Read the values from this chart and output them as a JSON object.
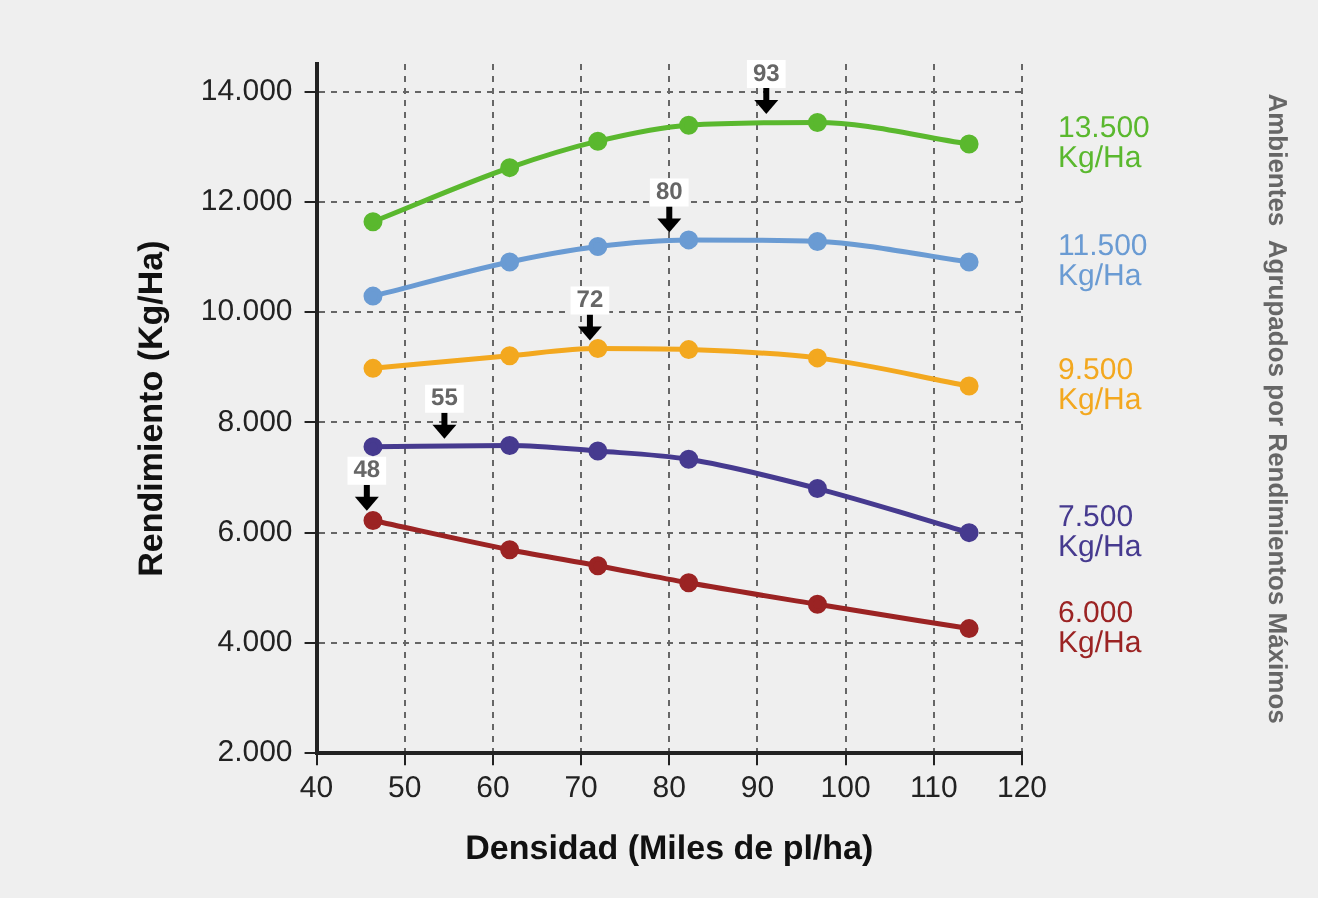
{
  "chart_data": {
    "type": "line",
    "xlabel": "Densidad (Miles de pl/ha)",
    "ylabel": "Rendimiento (Kg/Ha)",
    "legend_title": "Ambientes  Agrupados por Rendimientos Máximos",
    "x": [
      46.4,
      61.9,
      71.9,
      82.2,
      96.8,
      114.0
    ],
    "xlim": [
      40,
      120
    ],
    "xticks": [
      40,
      50,
      60,
      70,
      80,
      90,
      100,
      110,
      120
    ],
    "ylim": [
      2000,
      14500
    ],
    "yticks": [
      {
        "value": 2000,
        "label": "2.000"
      },
      {
        "value": 4000,
        "label": "4.000"
      },
      {
        "value": 6000,
        "label": "6.000"
      },
      {
        "value": 8000,
        "label": "8.000"
      },
      {
        "value": 10000,
        "label": "10.000"
      },
      {
        "value": 12000,
        "label": "12.000"
      },
      {
        "value": 14000,
        "label": "14.000"
      }
    ],
    "series": [
      {
        "name": "13.500 Kg/Ha",
        "color": "#5ab82e",
        "values": [
          11640,
          12620,
          13100,
          13390,
          13440,
          13050
        ]
      },
      {
        "name": "11.500 Kg/Ha",
        "color": "#6a9bd3",
        "values": [
          10290,
          10910,
          11190,
          11310,
          11280,
          10910
        ]
      },
      {
        "name": "9.500 Kg/Ha",
        "color": "#f3a81f",
        "values": [
          8980,
          9210,
          9340,
          9320,
          9170,
          8660
        ]
      },
      {
        "name": "7.500 Kg/Ha",
        "color": "#463a8f",
        "values": [
          7560,
          7580,
          7480,
          7330,
          6800,
          6000
        ]
      },
      {
        "name": "6.000 Kg/Ha",
        "color": "#9b2323",
        "values": [
          6220,
          5690,
          5400,
          5090,
          4700,
          4260
        ]
      }
    ],
    "annotations": [
      {
        "text": "93",
        "x": 91,
        "y": 13450
      },
      {
        "text": "80",
        "x": 80,
        "y": 11300
      },
      {
        "text": "72",
        "x": 71,
        "y": 9340
      },
      {
        "text": "55",
        "x": 54.5,
        "y": 7560
      },
      {
        "text": "48",
        "x": 45.7,
        "y": 6250
      }
    ],
    "grid": true,
    "legend": "right",
    "marker": "circle",
    "line_style": "solid"
  }
}
